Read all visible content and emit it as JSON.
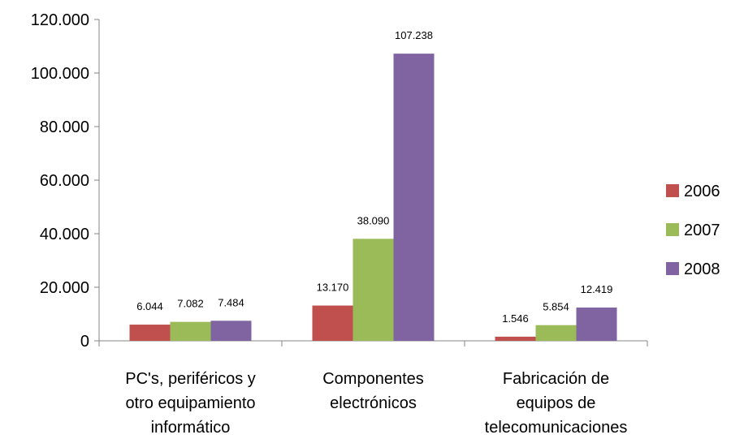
{
  "chart_data": {
    "type": "bar",
    "title": "",
    "xlabel": "",
    "ylabel": "",
    "ylim": [
      0,
      120000
    ],
    "yticks": [
      0,
      20000,
      40000,
      60000,
      80000,
      100000,
      120000
    ],
    "ytick_labels": [
      "0",
      "20.000",
      "40.000",
      "60.000",
      "80.000",
      "100.000",
      "120.000"
    ],
    "grid": false,
    "legend_position": "right",
    "categories": [
      [
        "PC's, periféricos y",
        "otro equipamiento",
        "informático"
      ],
      [
        "Componentes",
        "electrónicos"
      ],
      [
        "Fabricación de",
        "equipos de",
        "telecomunicaciones"
      ]
    ],
    "series": [
      {
        "name": "2006",
        "color": "#c0504d",
        "values": [
          6044,
          13170,
          1546
        ],
        "labels": [
          "6.044",
          "13.170",
          "1.546"
        ]
      },
      {
        "name": "2007",
        "color": "#9bbb59",
        "values": [
          7082,
          38090,
          5854
        ],
        "labels": [
          "7.082",
          "38.090",
          "5.854"
        ]
      },
      {
        "name": "2008",
        "color": "#8064a2",
        "values": [
          7484,
          107238,
          12419
        ],
        "labels": [
          "7.484",
          "107.238",
          "12.419"
        ]
      }
    ]
  }
}
